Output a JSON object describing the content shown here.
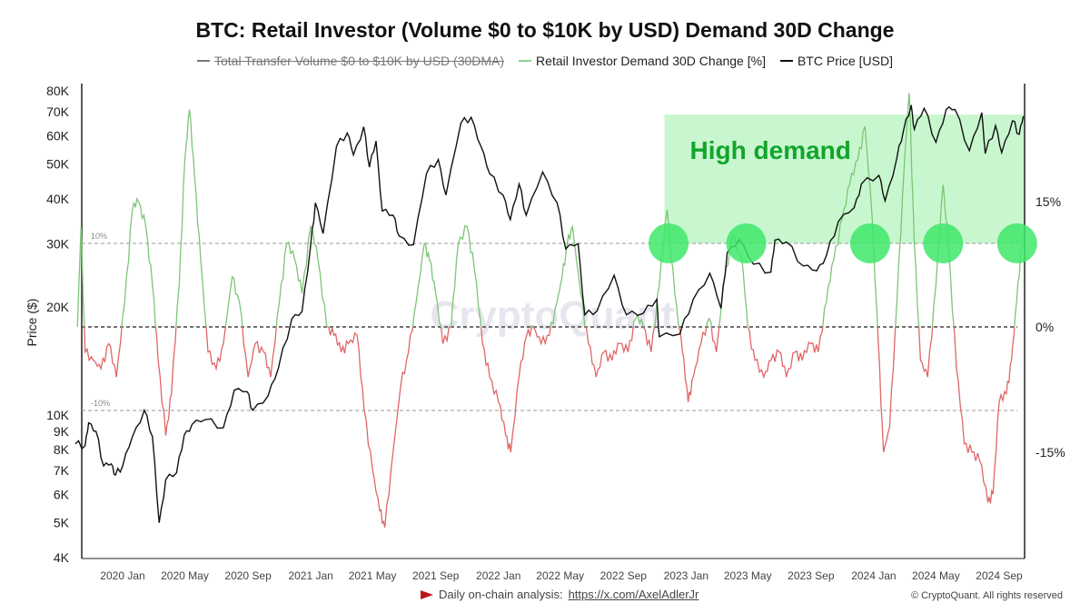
{
  "title": "BTC: Retail Investor (Volume $0 to $10K by USD) Demand 30D Change",
  "legend": [
    {
      "label": "Total Transfer Volume  $0 to $10K by USD (30DMA)",
      "color": "#777777",
      "disabled": true
    },
    {
      "label": "Retail Investor Demand 30D Change [%]",
      "color": "#8fd18f",
      "disabled": false
    },
    {
      "label": "BTC Price [USD]",
      "color": "#111111",
      "disabled": false
    }
  ],
  "footer": {
    "prefix": "Daily on-chain analysis: ",
    "link": "https://x.com/AxelAdlerJr",
    "copyright": "© CryptoQuant. All rights reserved"
  },
  "watermark": "CryptoQuant",
  "chart_data": {
    "type": "line",
    "ylabel": "Price ($)",
    "left_axis": {
      "scale": "log",
      "range": [
        4000,
        80000
      ],
      "ticks": [
        4000,
        5000,
        6000,
        7000,
        8000,
        9000,
        10000,
        20000,
        30000,
        40000,
        50000,
        60000,
        70000,
        80000
      ],
      "tick_labels": [
        "4K",
        "5K",
        "6K",
        "7K",
        "8K",
        "9K",
        "10K",
        "20K",
        "30K",
        "40K",
        "50K",
        "60K",
        "70K",
        "80K"
      ]
    },
    "right_axis": {
      "range": [
        -27,
        30
      ],
      "ticks": [
        15,
        0,
        -15
      ],
      "tick_labels": [
        "15%",
        "0%",
        "-15%"
      ]
    },
    "x_axis": {
      "range": [
        "2019-10-01",
        "2024-10-20"
      ],
      "ticks": [
        "2020-01-01",
        "2020-05-01",
        "2020-09-01",
        "2021-01-01",
        "2021-05-01",
        "2021-09-01",
        "2022-01-01",
        "2022-05-01",
        "2022-09-01",
        "2023-01-01",
        "2023-05-01",
        "2023-09-01",
        "2024-01-01",
        "2024-05-01",
        "2024-09-01"
      ],
      "tick_labels": [
        "2020 Jan",
        "2020 May",
        "2020 Sep",
        "2021 Jan",
        "2021 May",
        "2021 Sep",
        "2022 Jan",
        "2022 May",
        "2022 Sep",
        "2023 Jan",
        "2023 May",
        "2023 Sep",
        "2024 Jan",
        "2024 May",
        "2024 Sep"
      ]
    },
    "reference_lines": [
      {
        "value": 10,
        "label": "10%"
      },
      {
        "value": 0,
        "label": ""
      },
      {
        "value": -10,
        "label": "-10%"
      }
    ],
    "colors": {
      "positive": "#7cc576",
      "negative": "#e06666",
      "price": "#111111",
      "highlight": "#c8f7cf",
      "circle": "#3ee86a",
      "annotation": "#12a52c"
    },
    "annotation": {
      "text": "High demand",
      "region": {
        "x_from": "2022-11-20",
        "x_to": "2024-10-20",
        "demand_from": 10,
        "price_to": 68700
      },
      "circles": [
        {
          "date": "2022-11-28",
          "value": 10
        },
        {
          "date": "2023-04-28",
          "value": 10
        },
        {
          "date": "2023-12-25",
          "value": 10
        },
        {
          "date": "2024-05-15",
          "value": 10
        },
        {
          "date": "2024-10-06",
          "value": 10
        }
      ]
    },
    "series": [
      {
        "name": "BTC Price [USD]",
        "axis": "left",
        "points": [
          [
            "2019-10-01",
            8300
          ],
          [
            "2019-10-20",
            8200
          ],
          [
            "2019-10-27",
            9500
          ],
          [
            "2019-11-10",
            9000
          ],
          [
            "2019-11-25",
            7200
          ],
          [
            "2019-12-10",
            7300
          ],
          [
            "2019-12-18",
            6800
          ],
          [
            "2020-01-01",
            7200
          ],
          [
            "2020-01-20",
            8700
          ],
          [
            "2020-02-12",
            10300
          ],
          [
            "2020-02-28",
            8700
          ],
          [
            "2020-03-12",
            5000
          ],
          [
            "2020-03-25",
            6600
          ],
          [
            "2020-04-15",
            6900
          ],
          [
            "2020-04-30",
            8800
          ],
          [
            "2020-05-15",
            9400
          ],
          [
            "2020-06-10",
            9700
          ],
          [
            "2020-07-15",
            9200
          ],
          [
            "2020-08-05",
            11700
          ],
          [
            "2020-08-30",
            11600
          ],
          [
            "2020-09-10",
            10300
          ],
          [
            "2020-10-10",
            11300
          ],
          [
            "2020-10-30",
            13500
          ],
          [
            "2020-11-25",
            18500
          ],
          [
            "2020-12-15",
            19400
          ],
          [
            "2020-12-31",
            29000
          ],
          [
            "2021-01-10",
            39000
          ],
          [
            "2021-01-25",
            32000
          ],
          [
            "2021-02-20",
            56000
          ],
          [
            "2021-03-13",
            61000
          ],
          [
            "2021-03-25",
            53000
          ],
          [
            "2021-04-14",
            63500
          ],
          [
            "2021-04-25",
            49000
          ],
          [
            "2021-05-08",
            58000
          ],
          [
            "2021-05-20",
            37000
          ],
          [
            "2021-06-10",
            36000
          ],
          [
            "2021-06-22",
            31500
          ],
          [
            "2021-07-20",
            29800
          ],
          [
            "2021-08-14",
            47000
          ],
          [
            "2021-09-06",
            51500
          ],
          [
            "2021-09-21",
            41000
          ],
          [
            "2021-10-20",
            65000
          ],
          [
            "2021-11-09",
            67500
          ],
          [
            "2021-11-28",
            56000
          ],
          [
            "2021-12-15",
            47000
          ],
          [
            "2022-01-10",
            41000
          ],
          [
            "2022-01-24",
            35000
          ],
          [
            "2022-02-10",
            44000
          ],
          [
            "2022-02-24",
            36000
          ],
          [
            "2022-03-28",
            47500
          ],
          [
            "2022-04-25",
            39000
          ],
          [
            "2022-05-12",
            29000
          ],
          [
            "2022-06-05",
            30000
          ],
          [
            "2022-06-18",
            19000
          ],
          [
            "2022-07-12",
            19500
          ],
          [
            "2022-08-14",
            24500
          ],
          [
            "2022-09-07",
            19000
          ],
          [
            "2022-10-10",
            19200
          ],
          [
            "2022-11-05",
            21000
          ],
          [
            "2022-11-10",
            16500
          ],
          [
            "2022-12-20",
            16800
          ],
          [
            "2023-01-15",
            21000
          ],
          [
            "2023-02-16",
            24800
          ],
          [
            "2023-03-10",
            19800
          ],
          [
            "2023-03-22",
            28300
          ],
          [
            "2023-04-14",
            30800
          ],
          [
            "2023-05-12",
            26300
          ],
          [
            "2023-06-15",
            25000
          ],
          [
            "2023-06-23",
            30700
          ],
          [
            "2023-07-15",
            30300
          ],
          [
            "2023-08-17",
            26000
          ],
          [
            "2023-09-12",
            25200
          ],
          [
            "2023-10-01",
            27800
          ],
          [
            "2023-10-24",
            34500
          ],
          [
            "2023-11-24",
            37800
          ],
          [
            "2023-12-08",
            44000
          ],
          [
            "2024-01-11",
            46500
          ],
          [
            "2024-01-23",
            39500
          ],
          [
            "2024-02-15",
            52000
          ],
          [
            "2024-02-28",
            62000
          ],
          [
            "2024-03-14",
            73000
          ],
          [
            "2024-03-20",
            62500
          ],
          [
            "2024-04-08",
            71500
          ],
          [
            "2024-05-01",
            57500
          ],
          [
            "2024-05-21",
            71000
          ],
          [
            "2024-06-07",
            71000
          ],
          [
            "2024-07-05",
            54500
          ],
          [
            "2024-07-29",
            69500
          ],
          [
            "2024-08-05",
            53500
          ],
          [
            "2024-08-25",
            64000
          ],
          [
            "2024-09-06",
            53800
          ],
          [
            "2024-09-27",
            66000
          ],
          [
            "2024-10-10",
            60500
          ],
          [
            "2024-10-18",
            68000
          ]
        ]
      },
      {
        "name": "Retail Investor Demand 30D Change [%]",
        "axis": "right",
        "points": [
          [
            "2019-10-05",
            0
          ],
          [
            "2019-10-12",
            12
          ],
          [
            "2019-10-20",
            -3
          ],
          [
            "2019-11-05",
            -4
          ],
          [
            "2019-11-20",
            -5
          ],
          [
            "2019-12-05",
            -2
          ],
          [
            "2019-12-20",
            -6
          ],
          [
            "2020-01-05",
            3
          ],
          [
            "2020-01-20",
            14
          ],
          [
            "2020-02-01",
            15
          ],
          [
            "2020-02-15",
            12
          ],
          [
            "2020-02-28",
            5
          ],
          [
            "2020-03-10",
            -4
          ],
          [
            "2020-03-25",
            -13
          ],
          [
            "2020-04-05",
            -8
          ],
          [
            "2020-04-20",
            5
          ],
          [
            "2020-05-01",
            20
          ],
          [
            "2020-05-10",
            26
          ],
          [
            "2020-05-20",
            18
          ],
          [
            "2020-06-01",
            8
          ],
          [
            "2020-06-15",
            -3
          ],
          [
            "2020-07-01",
            -5
          ],
          [
            "2020-07-15",
            -2
          ],
          [
            "2020-08-01",
            6
          ],
          [
            "2020-08-15",
            3
          ],
          [
            "2020-09-01",
            -6
          ],
          [
            "2020-09-15",
            -2
          ],
          [
            "2020-10-01",
            -3
          ],
          [
            "2020-10-15",
            -6
          ],
          [
            "2020-11-01",
            3
          ],
          [
            "2020-11-15",
            10
          ],
          [
            "2020-12-01",
            8
          ],
          [
            "2020-12-15",
            4
          ],
          [
            "2021-01-01",
            12
          ],
          [
            "2021-01-15",
            8
          ],
          [
            "2021-02-01",
            0
          ],
          [
            "2021-02-15",
            -1
          ],
          [
            "2021-03-01",
            -3
          ],
          [
            "2021-03-15",
            -2
          ],
          [
            "2021-04-01",
            -1
          ],
          [
            "2021-04-15",
            -10
          ],
          [
            "2021-05-01",
            -17
          ],
          [
            "2021-05-15",
            -22
          ],
          [
            "2021-05-25",
            -24
          ],
          [
            "2021-06-10",
            -15
          ],
          [
            "2021-06-25",
            -7
          ],
          [
            "2021-07-10",
            -3
          ],
          [
            "2021-07-25",
            3
          ],
          [
            "2021-08-10",
            10
          ],
          [
            "2021-08-20",
            8
          ],
          [
            "2021-09-01",
            4
          ],
          [
            "2021-09-15",
            -2
          ],
          [
            "2021-10-01",
            0
          ],
          [
            "2021-10-15",
            10
          ],
          [
            "2021-11-01",
            12
          ],
          [
            "2021-11-15",
            7
          ],
          [
            "2021-12-01",
            -2
          ],
          [
            "2021-12-15",
            -6
          ],
          [
            "2022-01-01",
            -9
          ],
          [
            "2022-01-15",
            -13
          ],
          [
            "2022-01-25",
            -15
          ],
          [
            "2022-02-10",
            -6
          ],
          [
            "2022-02-25",
            -1
          ],
          [
            "2022-03-10",
            0
          ],
          [
            "2022-03-25",
            -2
          ],
          [
            "2022-04-10",
            -1
          ],
          [
            "2022-04-25",
            3
          ],
          [
            "2022-05-05",
            6
          ],
          [
            "2022-05-15",
            10
          ],
          [
            "2022-05-25",
            12
          ],
          [
            "2022-06-10",
            4
          ],
          [
            "2022-06-25",
            -2
          ],
          [
            "2022-07-10",
            -6
          ],
          [
            "2022-07-25",
            -3
          ],
          [
            "2022-08-10",
            -4
          ],
          [
            "2022-08-25",
            -2
          ],
          [
            "2022-09-10",
            -3
          ],
          [
            "2022-09-25",
            1
          ],
          [
            "2022-10-10",
            0
          ],
          [
            "2022-10-25",
            -3
          ],
          [
            "2022-11-10",
            5
          ],
          [
            "2022-11-25",
            14
          ],
          [
            "2022-12-10",
            4
          ],
          [
            "2022-12-25",
            -3
          ],
          [
            "2023-01-05",
            -9
          ],
          [
            "2023-01-15",
            -6
          ],
          [
            "2023-01-30",
            -2
          ],
          [
            "2023-02-15",
            1
          ],
          [
            "2023-03-01",
            -3
          ],
          [
            "2023-03-15",
            5
          ],
          [
            "2023-04-01",
            11
          ],
          [
            "2023-04-20",
            8
          ],
          [
            "2023-05-01",
            0
          ],
          [
            "2023-05-15",
            -4
          ],
          [
            "2023-06-01",
            -6
          ],
          [
            "2023-06-15",
            -4
          ],
          [
            "2023-07-01",
            -3
          ],
          [
            "2023-07-15",
            -6
          ],
          [
            "2023-08-01",
            -3
          ],
          [
            "2023-08-15",
            -4
          ],
          [
            "2023-09-01",
            -2
          ],
          [
            "2023-09-15",
            -3
          ],
          [
            "2023-10-01",
            3
          ],
          [
            "2023-10-15",
            8
          ],
          [
            "2023-11-01",
            13
          ],
          [
            "2023-11-15",
            17
          ],
          [
            "2023-12-01",
            20
          ],
          [
            "2023-12-15",
            24
          ],
          [
            "2023-12-28",
            14
          ],
          [
            "2024-01-10",
            -2
          ],
          [
            "2024-01-20",
            -15
          ],
          [
            "2024-02-01",
            -12
          ],
          [
            "2024-02-15",
            3
          ],
          [
            "2024-03-01",
            20
          ],
          [
            "2024-03-10",
            28
          ],
          [
            "2024-03-20",
            10
          ],
          [
            "2024-04-01",
            -4
          ],
          [
            "2024-04-15",
            -6
          ],
          [
            "2024-05-01",
            5
          ],
          [
            "2024-05-15",
            17
          ],
          [
            "2024-05-25",
            10
          ],
          [
            "2024-06-10",
            -5
          ],
          [
            "2024-06-25",
            -14
          ],
          [
            "2024-07-10",
            -15
          ],
          [
            "2024-07-25",
            -16
          ],
          [
            "2024-08-10",
            -21
          ],
          [
            "2024-08-20",
            -20
          ],
          [
            "2024-09-01",
            -9
          ],
          [
            "2024-09-15",
            -8
          ],
          [
            "2024-09-25",
            -4
          ],
          [
            "2024-10-05",
            3
          ],
          [
            "2024-10-15",
            10
          ]
        ]
      }
    ]
  }
}
